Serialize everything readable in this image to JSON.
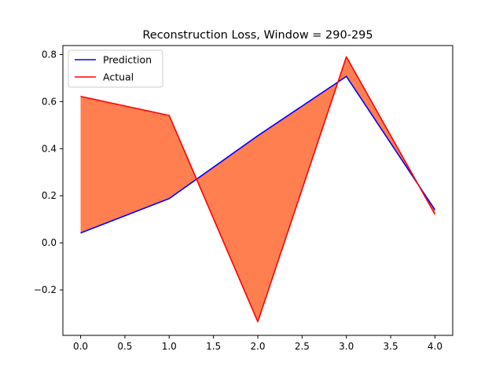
{
  "chart_data": {
    "type": "line",
    "title": "Reconstruction Loss, Window = 290-295",
    "xlabel": "",
    "ylabel": "",
    "x": [
      0,
      1,
      2,
      3,
      4
    ],
    "series": [
      {
        "name": "Prediction",
        "color": "#0000ff",
        "values": [
          0.042,
          0.188,
          0.455,
          0.707,
          0.14
        ]
      },
      {
        "name": "Actual",
        "color": "#ff0000",
        "values": [
          0.622,
          0.541,
          -0.335,
          0.79,
          0.121
        ]
      }
    ],
    "fill_between": {
      "color": "#ff7f50",
      "between": [
        "Prediction",
        "Actual"
      ]
    },
    "xlim": [
      -0.2,
      4.2
    ],
    "ylim": [
      -0.393,
      0.838
    ],
    "xticks": [
      0.0,
      0.5,
      1.0,
      1.5,
      2.0,
      2.5,
      3.0,
      3.5,
      4.0
    ],
    "xtick_labels": [
      "0.0",
      "0.5",
      "1.0",
      "1.5",
      "2.0",
      "2.5",
      "3.0",
      "3.5",
      "4.0"
    ],
    "yticks": [
      -0.2,
      0.0,
      0.2,
      0.4,
      0.6,
      0.8
    ],
    "ytick_labels": [
      "−0.2",
      "0.0",
      "0.2",
      "0.4",
      "0.6",
      "0.8"
    ],
    "legend": "top-left",
    "grid": false
  }
}
